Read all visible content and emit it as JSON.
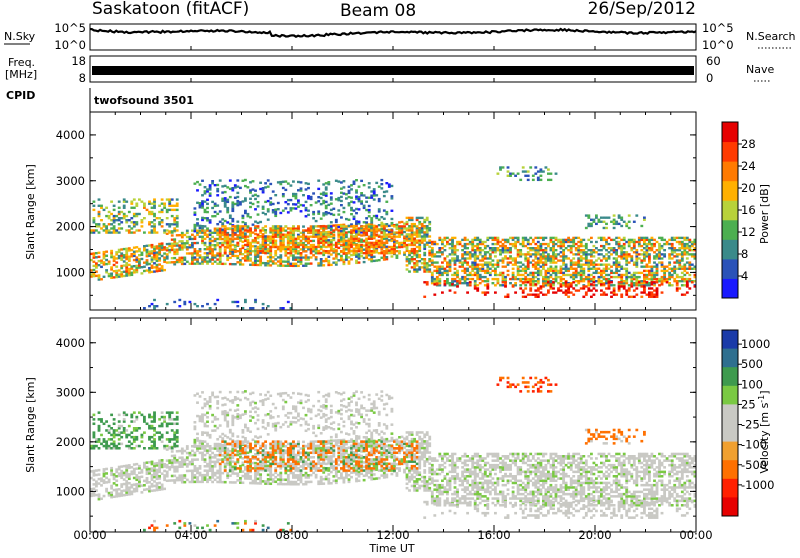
{
  "header": {
    "station": "Saskatoon (fitACF)",
    "beam": "Beam 08",
    "date": "26/Sep/2012"
  },
  "noise_panel": {
    "left_label": "N.Sky",
    "right_label": "N.Search",
    "tick_top": "10^5",
    "tick_bottom": "10^0"
  },
  "freq_panel": {
    "left_label_line1": "Freq.",
    "left_label_line2": "[MHz]",
    "left_tick_top": "18",
    "left_tick_bottom": "8",
    "right_tick_top": "60",
    "right_tick_bottom": "0",
    "right_label": "Nave"
  },
  "cpid_panel": {
    "label": "CPID",
    "mode": "twofsound 3501"
  },
  "chart_data": [
    {
      "type": "heatmap",
      "quantity": "Power",
      "ylabel": "Slant Range [km]",
      "xlabel": "Time UT",
      "x_ticks": [
        "00:00",
        "04:00",
        "08:00",
        "12:00",
        "16:00",
        "20:00",
        "00:00"
      ],
      "y_ticks": [
        1000,
        2000,
        3000,
        4000
      ],
      "ylim": [
        180,
        4500
      ],
      "colorbar": {
        "label": "Power [dB]",
        "ticks": [
          4,
          8,
          12,
          16,
          20,
          24,
          28
        ],
        "colors": [
          "#1a1aff",
          "#2a52b8",
          "#3a8a8a",
          "#4caf50",
          "#b8d23a",
          "#ffb000",
          "#ff7a00",
          "#ff3a00",
          "#e60000"
        ]
      }
    },
    {
      "type": "heatmap",
      "quantity": "Velocity",
      "ylabel": "Slant Range [km]",
      "xlabel": "Time UT",
      "x_ticks": [
        "00:00",
        "04:00",
        "08:00",
        "12:00",
        "16:00",
        "20:00",
        "00:00"
      ],
      "y_ticks": [
        1000,
        2000,
        3000,
        4000
      ],
      "ylim": [
        180,
        4500
      ],
      "colorbar": {
        "label": "Velocity [m s^-1]",
        "ticks": [
          1000,
          500,
          100,
          25,
          -25,
          -100,
          -500,
          -1000
        ],
        "colors": [
          "#1a3aa8",
          "#2f6f8f",
          "#3e9a4e",
          "#7ac943",
          "#c9c9c4",
          "#c9c9c4",
          "#f0a030",
          "#ff7000",
          "#ff2000",
          "#e60000"
        ]
      }
    }
  ],
  "velocity_label": {
    "main": "Velocity",
    "unit_open": "[m s",
    "unit_exp": "-1",
    "unit_close": "]"
  },
  "xaxis": {
    "label": "Time UT"
  }
}
